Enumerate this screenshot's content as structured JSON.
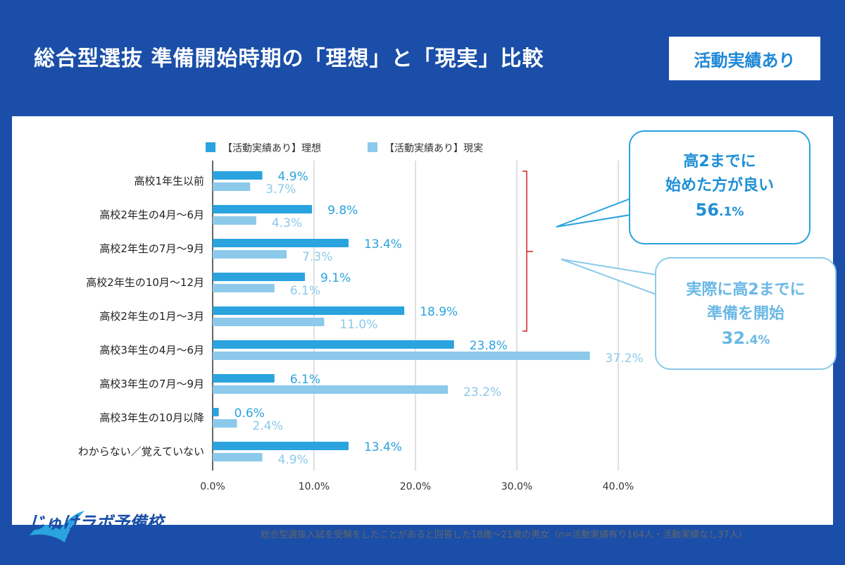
{
  "header": {
    "title": "総合型選抜 準備開始時期の「理想」と「現実」比較",
    "badge": "活動実績あり"
  },
  "chart_data": {
    "type": "bar",
    "orientation": "horizontal",
    "categories": [
      "高校1年生以前",
      "高校2年生の4月～6月",
      "高校2年生の7月～9月",
      "高校2年生の10月～12月",
      "高校2年生の1月～3月",
      "高校3年生の4月～6月",
      "高校3年生の7月～9月",
      "高校3年生の10月以降",
      "わからない／覚えていない"
    ],
    "series": [
      {
        "name": "【活動実績あり】理想",
        "color": "#2aa3df",
        "values": [
          4.9,
          9.8,
          13.4,
          9.1,
          18.9,
          23.8,
          6.1,
          0.6,
          13.4
        ]
      },
      {
        "name": "【活動実績あり】現実",
        "color": "#8cc9ea",
        "values": [
          3.7,
          4.3,
          7.3,
          6.1,
          11.0,
          37.2,
          23.2,
          2.4,
          4.9
        ]
      }
    ],
    "xlim": [
      0,
      40
    ],
    "xticks": [
      "0.0%",
      "10.0%",
      "20.0%",
      "30.0%",
      "40.0%"
    ],
    "grid": true,
    "legend": "top"
  },
  "callouts": {
    "ideal": {
      "line1": "高2までに",
      "line2": "始めた方が良い",
      "value": "56",
      "value_dec": ".1%"
    },
    "real": {
      "line1": "実際に高2までに",
      "line2": "準備を開始",
      "value": "32",
      "value_dec": ".4%"
    }
  },
  "logo": "じゅけラボ予備校",
  "footnote": "総合型選抜入試を受験をしたことがあると回答した18歳～21歳の男女（n=活動実績有り164人・活動実績なし37人）"
}
